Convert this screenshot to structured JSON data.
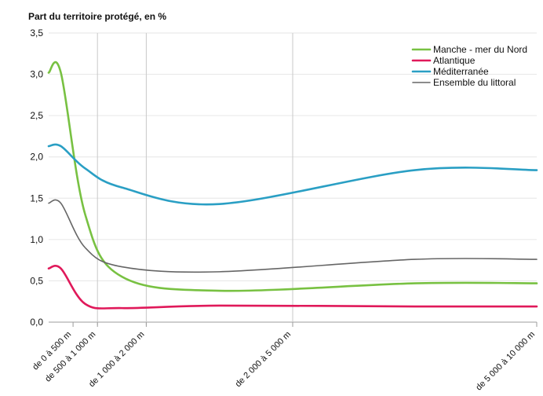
{
  "chart_data": {
    "type": "line",
    "title": "Part du territoire protégé, en %",
    "xlabel": "",
    "ylabel": "",
    "x_numeric_distance_m": [
      250,
      750,
      1500,
      3500,
      7500
    ],
    "x_labels": [
      "de 0 à 500 m",
      "de 500 à 1 000 m",
      "de 1 000 à 2 000 m",
      "de 2 000 à 5 000 m",
      "de 5 000 à 10 000 m"
    ],
    "ylim": [
      0,
      3.5
    ],
    "yticks": [
      "0,0",
      "0,5",
      "1,0",
      "1,5",
      "2,0",
      "2,5",
      "3,0",
      "3,5"
    ],
    "vertical_grid_at_categories": [
      1,
      2,
      3
    ],
    "legend_position": "top-right",
    "series": [
      {
        "name": "Manche - mer du Nord",
        "color": "#78c142",
        "values": [
          3.02,
          1.3,
          0.55,
          0.38,
          0.47
        ]
      },
      {
        "name": "Atlantique",
        "color": "#e0195a",
        "values": [
          0.65,
          0.22,
          0.17,
          0.2,
          0.19
        ]
      },
      {
        "name": "Méditerranée",
        "color": "#2a9fc4",
        "values": [
          2.13,
          1.86,
          1.63,
          1.43,
          1.84
        ]
      },
      {
        "name": "Ensemble du littoral",
        "color": "#666666",
        "values": [
          1.44,
          0.9,
          0.67,
          0.61,
          0.76
        ]
      }
    ]
  }
}
